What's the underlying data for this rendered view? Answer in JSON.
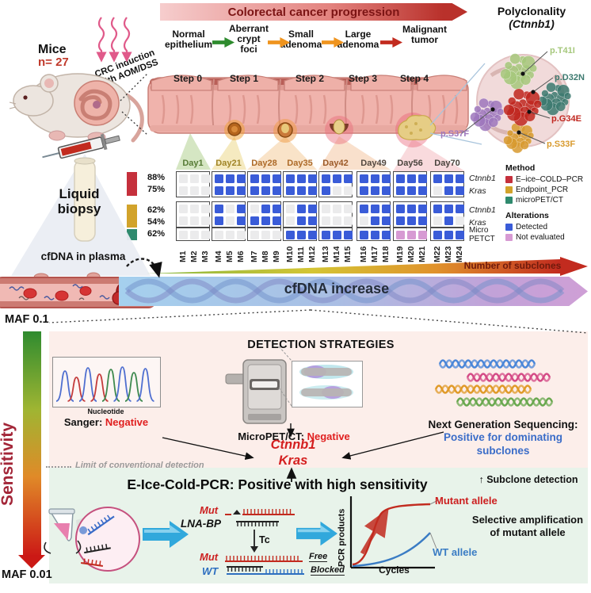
{
  "banner": {
    "title": "Colorectal cancer progression"
  },
  "stages": {
    "items": [
      {
        "lines": [
          "Normal",
          "epithelium"
        ]
      },
      {
        "lines": [
          "Aberrant",
          "crypt",
          "foci"
        ]
      },
      {
        "lines": [
          "Small",
          "adenoma"
        ]
      },
      {
        "lines": [
          "Large",
          "adenoma"
        ]
      },
      {
        "lines": [
          "Malignant",
          "tumor"
        ]
      }
    ],
    "arrow_colors": [
      "#2e8b2e",
      "#ef941e",
      "#ef941e",
      "#c22b1f"
    ]
  },
  "steps": [
    "Step 0",
    "Step 1",
    "Step 2",
    "Step 3",
    "Step 4"
  ],
  "polyclonality": {
    "title": "Polyclonality",
    "subtitle": "(Ctnnb1)",
    "mutations": [
      {
        "label": "p.T41I",
        "color": "#a6c87c"
      },
      {
        "label": "p.D32N",
        "color": "#3d7a70"
      },
      {
        "label": "p.G34E",
        "color": "#c0271f"
      },
      {
        "label": "p.S33F",
        "color": "#d89a2e"
      },
      {
        "label": "p.S37F",
        "color": "#9e77bd"
      }
    ]
  },
  "mice": {
    "label": "Mice",
    "count": "n= 27",
    "induction_lines": [
      "CRC induction",
      "with AOM/DSS"
    ]
  },
  "grid": {
    "days": [
      {
        "label": "Day1",
        "color": "#567b35"
      },
      {
        "label": "Day21",
        "color": "#a08426"
      },
      {
        "label": "Day28",
        "color": "#ad6a28"
      },
      {
        "label": "Day35",
        "color": "#ad6a28"
      },
      {
        "label": "Day42",
        "color": "#9c5a28"
      },
      {
        "label": "Day49",
        "color": "#53483f"
      },
      {
        "label": "Day56",
        "color": "#4a443e"
      },
      {
        "label": "Day70",
        "color": "#4a443e"
      }
    ],
    "rows": [
      {
        "pct": "88%",
        "gene": "Ctnnb1",
        "italic": true
      },
      {
        "pct": "75%",
        "gene": "Kras",
        "italic": true
      },
      {
        "pct": "62%",
        "gene": "Ctnnb1",
        "italic": true
      },
      {
        "pct": "54%",
        "gene": "Kras",
        "italic": true
      },
      {
        "pct": "62%",
        "gene": "Micro PETCT",
        "italic": false
      }
    ],
    "mice_labels": [
      "M1",
      "M2",
      "M3",
      "M4",
      "M5",
      "M6",
      "M7",
      "M8",
      "M9",
      "M10",
      "M11",
      "M12",
      "M13",
      "M14",
      "M15",
      "M16",
      "M17",
      "M18",
      "M19",
      "M20",
      "M21",
      "M22",
      "M23",
      "M24"
    ],
    "cells": [
      [
        "nnn",
        "ddd",
        "ddd",
        "ddd",
        "ddd",
        "ddd",
        "ddd",
        "ddd"
      ],
      [
        "nnn",
        "ddd",
        "ddd",
        "ddd",
        "dnn",
        "ddd",
        "ddd",
        "ndd"
      ],
      [
        "nnn",
        "dnd",
        "ndd",
        "ndd",
        "nnn",
        "ddd",
        "ddd",
        "ddd"
      ],
      [
        "nnn",
        "dnd",
        "ddd",
        "ndd",
        "nnn",
        "ndd",
        "ddd",
        "ndn"
      ],
      [
        "nnn",
        "nnn",
        "nnn",
        "ddd",
        "ddd",
        "ddd",
        "xxx",
        "ddd"
      ]
    ],
    "cell_gray": "#ebebec"
  },
  "legend": {
    "method_title": "Method",
    "methods": [
      {
        "label": "E–ice–COLD–PCR",
        "color": "#c5303c"
      },
      {
        "label": "Endpoint_PCR",
        "color": "#d2a32b"
      },
      {
        "label": "microPET/CT",
        "color": "#2f8a6e"
      }
    ],
    "alt_title": "Alterations",
    "alterations": [
      {
        "label": "Detected",
        "color": "#3a5cd8"
      },
      {
        "label": "Not evaluated",
        "color": "#d79ad3"
      }
    ]
  },
  "liquid": {
    "title_lines": [
      "Liquid",
      "biopsy"
    ],
    "cfdna": "cfDNA in plasma"
  },
  "flow": {
    "cfdna_increase": "cfDNA increase",
    "subclones": "Number of subclones"
  },
  "sensitivity": {
    "maf_top": "MAF 0.1",
    "maf_bottom": "MAF 0.01",
    "label": "Sensitivity",
    "limit": "Limit of conventional detection"
  },
  "detection": {
    "title": "DETECTION STRATEGIES",
    "sanger": {
      "axis": "Nucleotide",
      "name": "Sanger: ",
      "result": "Negative"
    },
    "micropet": {
      "name": "MicroPET/CT: ",
      "result": "Negative"
    },
    "ngs": {
      "name": "Next Generation Sequencing: ",
      "result": "Positive for dominating subclones",
      "helix_colors": [
        "#4a86d8",
        "#d44a86",
        "#e09a28",
        "#6aa84f"
      ]
    },
    "genes": [
      "Ctnnb1",
      "Kras"
    ]
  },
  "ecold": {
    "title": "E-Ice-Cold-PCR: Positive with high sensitivity",
    "subclone": "↑ Subclone detection",
    "mut": "Mut",
    "lna": "LNA-BP",
    "tc": "Tc",
    "wt": "WT",
    "free": "Free",
    "blocked": "Blocked",
    "graph": {
      "ylabel": "PCR products",
      "xlabel": "Cycles",
      "mutant": "Mutant allele",
      "wt": "WT allele"
    },
    "selective": "Selective amplification of mutant allele"
  }
}
